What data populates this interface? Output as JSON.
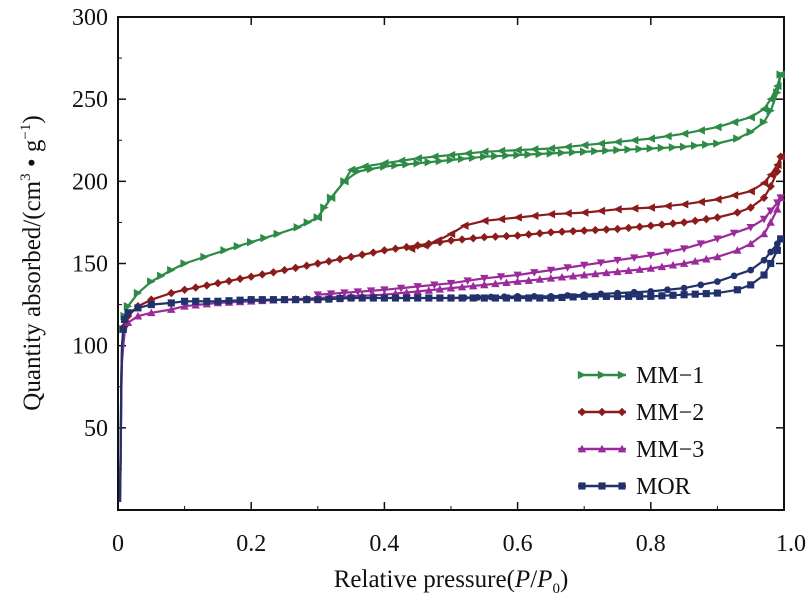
{
  "chart_data": {
    "type": "line",
    "title": "",
    "xlabel": {
      "prefix": "Relative pressure(",
      "var": "P",
      "slash": "/",
      "var2": "P",
      "sub": "0",
      "suffix": ")"
    },
    "ylabel": {
      "text": "Quantity absorbed/(cm",
      "sup1": "3",
      "mid": " • g",
      "sup2": "−1",
      "end": ")"
    },
    "xlim": [
      0,
      1.0
    ],
    "ylim": [
      0,
      300
    ],
    "xticks": [
      {
        "value": 0,
        "label": "0"
      },
      {
        "value": 0.2,
        "label": "0.2"
      },
      {
        "value": 0.4,
        "label": "0.4"
      },
      {
        "value": 0.6,
        "label": "0.6"
      },
      {
        "value": 0.8,
        "label": "0.8"
      },
      {
        "value": 1.0,
        "label": "1.0"
      }
    ],
    "yticks": [
      {
        "value": 50,
        "label": "50"
      },
      {
        "value": 100,
        "label": "100"
      },
      {
        "value": 150,
        "label": "150"
      },
      {
        "value": 200,
        "label": "200"
      },
      {
        "value": 250,
        "label": "250"
      },
      {
        "value": 300,
        "label": "300"
      }
    ],
    "grid": false,
    "legend_position": "bottom-right",
    "series": [
      {
        "name": "MM−1",
        "color": "#2e8b46",
        "marker": "triangle-right",
        "adsorption": [
          [
            0.003,
            5
          ],
          [
            0.004,
            40
          ],
          [
            0.005,
            80
          ],
          [
            0.006,
            100
          ],
          [
            0.008,
            110
          ],
          [
            0.01,
            118
          ],
          [
            0.015,
            124
          ],
          [
            0.03,
            132
          ],
          [
            0.05,
            139
          ],
          [
            0.08,
            146
          ],
          [
            0.1,
            150
          ],
          [
            0.13,
            154
          ],
          [
            0.16,
            158
          ],
          [
            0.2,
            163
          ],
          [
            0.24,
            168
          ],
          [
            0.27,
            172
          ],
          [
            0.3,
            178
          ],
          [
            0.32,
            190
          ],
          [
            0.34,
            200
          ],
          [
            0.36,
            206
          ],
          [
            0.4,
            209
          ],
          [
            0.45,
            211
          ],
          [
            0.5,
            213
          ],
          [
            0.55,
            215
          ],
          [
            0.6,
            216
          ],
          [
            0.65,
            217
          ],
          [
            0.7,
            218
          ],
          [
            0.75,
            219
          ],
          [
            0.8,
            220
          ],
          [
            0.85,
            221
          ],
          [
            0.9,
            223
          ],
          [
            0.93,
            226
          ],
          [
            0.95,
            230
          ],
          [
            0.97,
            236
          ],
          [
            0.98,
            243
          ],
          [
            0.99,
            254
          ],
          [
            0.995,
            265
          ]
        ],
        "desorption": [
          [
            0.995,
            265
          ],
          [
            0.99,
            258
          ],
          [
            0.98,
            250
          ],
          [
            0.97,
            244
          ],
          [
            0.95,
            239
          ],
          [
            0.9,
            233
          ],
          [
            0.85,
            229
          ],
          [
            0.8,
            226
          ],
          [
            0.75,
            224
          ],
          [
            0.7,
            222
          ],
          [
            0.65,
            220
          ],
          [
            0.6,
            219
          ],
          [
            0.55,
            218
          ],
          [
            0.5,
            216
          ],
          [
            0.45,
            214
          ],
          [
            0.4,
            211
          ],
          [
            0.37,
            209
          ],
          [
            0.35,
            207
          ],
          [
            0.34,
            200
          ],
          [
            0.32,
            190
          ],
          [
            0.3,
            178
          ]
        ]
      },
      {
        "name": "MM−2",
        "color": "#8b1c1c",
        "marker": "diamond",
        "adsorption": [
          [
            0.003,
            5
          ],
          [
            0.004,
            35
          ],
          [
            0.005,
            75
          ],
          [
            0.006,
            95
          ],
          [
            0.008,
            105
          ],
          [
            0.01,
            112
          ],
          [
            0.015,
            118
          ],
          [
            0.03,
            124
          ],
          [
            0.05,
            128
          ],
          [
            0.08,
            132
          ],
          [
            0.1,
            134
          ],
          [
            0.15,
            138
          ],
          [
            0.2,
            142
          ],
          [
            0.25,
            146
          ],
          [
            0.3,
            150
          ],
          [
            0.35,
            154
          ],
          [
            0.4,
            158
          ],
          [
            0.45,
            161
          ],
          [
            0.5,
            164
          ],
          [
            0.55,
            166
          ],
          [
            0.6,
            167
          ],
          [
            0.65,
            169
          ],
          [
            0.7,
            170
          ],
          [
            0.75,
            171
          ],
          [
            0.8,
            173
          ],
          [
            0.85,
            175
          ],
          [
            0.9,
            178
          ],
          [
            0.93,
            181
          ],
          [
            0.95,
            184
          ],
          [
            0.97,
            190
          ],
          [
            0.98,
            197
          ],
          [
            0.99,
            206
          ],
          [
            0.995,
            215
          ]
        ],
        "desorption": [
          [
            0.995,
            215
          ],
          [
            0.99,
            210
          ],
          [
            0.98,
            204
          ],
          [
            0.97,
            199
          ],
          [
            0.95,
            194
          ],
          [
            0.9,
            189
          ],
          [
            0.85,
            186
          ],
          [
            0.8,
            184
          ],
          [
            0.75,
            183
          ],
          [
            0.7,
            181
          ],
          [
            0.65,
            180
          ],
          [
            0.6,
            178
          ],
          [
            0.55,
            176
          ],
          [
            0.52,
            173
          ],
          [
            0.5,
            168
          ],
          [
            0.48,
            164
          ],
          [
            0.46,
            161
          ],
          [
            0.44,
            159
          ]
        ]
      },
      {
        "name": "MM−3",
        "color": "#9b2b9b",
        "marker": "triangle-up",
        "adsorption": [
          [
            0.003,
            5
          ],
          [
            0.004,
            30
          ],
          [
            0.005,
            70
          ],
          [
            0.006,
            90
          ],
          [
            0.008,
            100
          ],
          [
            0.01,
            108
          ],
          [
            0.015,
            114
          ],
          [
            0.03,
            118
          ],
          [
            0.05,
            120
          ],
          [
            0.08,
            122
          ],
          [
            0.1,
            124
          ],
          [
            0.15,
            126
          ],
          [
            0.2,
            127
          ],
          [
            0.25,
            128
          ],
          [
            0.3,
            129
          ],
          [
            0.35,
            130
          ],
          [
            0.4,
            131
          ],
          [
            0.45,
            133
          ],
          [
            0.5,
            135
          ],
          [
            0.55,
            137
          ],
          [
            0.6,
            139
          ],
          [
            0.65,
            141
          ],
          [
            0.7,
            143
          ],
          [
            0.75,
            145
          ],
          [
            0.8,
            147
          ],
          [
            0.85,
            150
          ],
          [
            0.9,
            154
          ],
          [
            0.93,
            158
          ],
          [
            0.95,
            162
          ],
          [
            0.97,
            168
          ],
          [
            0.98,
            175
          ],
          [
            0.99,
            183
          ],
          [
            0.995,
            190
          ]
        ],
        "desorption": [
          [
            0.995,
            190
          ],
          [
            0.99,
            187
          ],
          [
            0.98,
            182
          ],
          [
            0.97,
            177
          ],
          [
            0.95,
            172
          ],
          [
            0.9,
            165
          ],
          [
            0.85,
            159
          ],
          [
            0.8,
            155
          ],
          [
            0.75,
            152
          ],
          [
            0.7,
            149
          ],
          [
            0.65,
            146
          ],
          [
            0.6,
            143
          ],
          [
            0.55,
            141
          ],
          [
            0.5,
            138
          ],
          [
            0.45,
            136
          ],
          [
            0.4,
            134
          ],
          [
            0.3,
            131
          ]
        ]
      },
      {
        "name": "MOR",
        "color": "#22306b",
        "marker": "square",
        "adsorption": [
          [
            0.003,
            5
          ],
          [
            0.004,
            40
          ],
          [
            0.005,
            80
          ],
          [
            0.006,
            100
          ],
          [
            0.008,
            110
          ],
          [
            0.01,
            116
          ],
          [
            0.015,
            120
          ],
          [
            0.03,
            123
          ],
          [
            0.05,
            125
          ],
          [
            0.08,
            126
          ],
          [
            0.1,
            127
          ],
          [
            0.15,
            127
          ],
          [
            0.2,
            128
          ],
          [
            0.25,
            128
          ],
          [
            0.3,
            128
          ],
          [
            0.35,
            129
          ],
          [
            0.4,
            129
          ],
          [
            0.45,
            129
          ],
          [
            0.5,
            129
          ],
          [
            0.55,
            129
          ],
          [
            0.6,
            129
          ],
          [
            0.65,
            129
          ],
          [
            0.7,
            130
          ],
          [
            0.75,
            130
          ],
          [
            0.8,
            130
          ],
          [
            0.85,
            131
          ],
          [
            0.9,
            132
          ],
          [
            0.93,
            134
          ],
          [
            0.95,
            137
          ],
          [
            0.97,
            143
          ],
          [
            0.98,
            150
          ],
          [
            0.99,
            158
          ],
          [
            0.995,
            165
          ]
        ],
        "desorption": [
          [
            0.995,
            165
          ],
          [
            0.99,
            162
          ],
          [
            0.98,
            157
          ],
          [
            0.97,
            152
          ],
          [
            0.95,
            146
          ],
          [
            0.9,
            139
          ],
          [
            0.85,
            135
          ],
          [
            0.8,
            133
          ],
          [
            0.75,
            132
          ],
          [
            0.7,
            131
          ],
          [
            0.65,
            130
          ],
          [
            0.6,
            130
          ],
          [
            0.5,
            129
          ]
        ]
      }
    ]
  }
}
